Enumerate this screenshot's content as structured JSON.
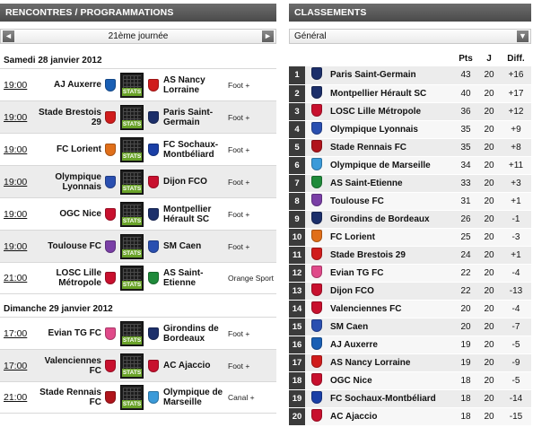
{
  "left_panel": {
    "title": "RENCONTRES / PROGRAMMATIONS",
    "round_selector": {
      "prev_icon": "◄",
      "label": "21ème journée",
      "next_icon": "►"
    },
    "days": [
      {
        "date": "Samedi 28 janvier 2012",
        "matches": [
          {
            "time": "19:00",
            "home": "AJ Auxerre",
            "home_color": "#1a5fb4",
            "away": "AS Nancy Lorraine",
            "away_color": "#d01c1c",
            "tv": "Foot +"
          },
          {
            "time": "19:00",
            "home": "Stade Brestois 29",
            "home_color": "#d01c1c",
            "away": "Paris Saint-Germain",
            "away_color": "#1c2f6a",
            "tv": "Foot +"
          },
          {
            "time": "19:00",
            "home": "FC Lorient",
            "home_color": "#e06f1a",
            "away": "FC Sochaux-Montbéliard",
            "away_color": "#1a3fa6",
            "tv": "Foot +"
          },
          {
            "time": "19:00",
            "home": "Olympique Lyonnais",
            "home_color": "#2a4fb0",
            "away": "Dijon FCO",
            "away_color": "#c8102e",
            "tv": "Foot +"
          },
          {
            "time": "19:00",
            "home": "OGC Nice",
            "home_color": "#c8102e",
            "away": "Montpellier Hérault SC",
            "away_color": "#1c2f6a",
            "tv": "Foot +"
          },
          {
            "time": "19:00",
            "home": "Toulouse FC",
            "home_color": "#7a3fa6",
            "away": "SM Caen",
            "away_color": "#2a4fb0",
            "tv": "Foot +"
          },
          {
            "time": "21:00",
            "home": "LOSC Lille Métropole",
            "home_color": "#c8102e",
            "away": "AS Saint-Etienne",
            "away_color": "#1f8a3a",
            "tv": "Orange Sport"
          }
        ]
      },
      {
        "date": "Dimanche 29 janvier 2012",
        "matches": [
          {
            "time": "17:00",
            "home": "Evian TG FC",
            "home_color": "#e04a8a",
            "away": "Girondins de Bordeaux",
            "away_color": "#1c2f6a",
            "tv": "Foot +"
          },
          {
            "time": "17:00",
            "home": "Valenciennes FC",
            "home_color": "#c8102e",
            "away": "AC Ajaccio",
            "away_color": "#c8102e",
            "tv": "Foot +"
          },
          {
            "time": "21:00",
            "home": "Stade Rennais FC",
            "home_color": "#b0151c",
            "away": "Olympique de Marseille",
            "away_color": "#3a9ad9",
            "tv": "Canal +"
          }
        ]
      }
    ],
    "stats_label": "STATS"
  },
  "right_panel": {
    "title": "CLASSEMENTS",
    "selector_label": "Général",
    "selector_icon": "chevron-down-icon",
    "columns": {
      "pts": "Pts",
      "j": "J",
      "diff": "Diff."
    },
    "rows": [
      {
        "rank": "1",
        "team": "Paris Saint-Germain",
        "pts": "43",
        "j": "20",
        "diff": "+16",
        "color": "#1c2f6a"
      },
      {
        "rank": "2",
        "team": "Montpellier Hérault SC",
        "pts": "40",
        "j": "20",
        "diff": "+17",
        "color": "#1c2f6a"
      },
      {
        "rank": "3",
        "team": "LOSC Lille Métropole",
        "pts": "36",
        "j": "20",
        "diff": "+12",
        "color": "#c8102e"
      },
      {
        "rank": "4",
        "team": "Olympique Lyonnais",
        "pts": "35",
        "j": "20",
        "diff": "+9",
        "color": "#2a4fb0"
      },
      {
        "rank": "5",
        "team": "Stade Rennais FC",
        "pts": "35",
        "j": "20",
        "diff": "+8",
        "color": "#b0151c"
      },
      {
        "rank": "6",
        "team": "Olympique de Marseille",
        "pts": "34",
        "j": "20",
        "diff": "+11",
        "color": "#3a9ad9"
      },
      {
        "rank": "7",
        "team": "AS Saint-Etienne",
        "pts": "33",
        "j": "20",
        "diff": "+3",
        "color": "#1f8a3a"
      },
      {
        "rank": "8",
        "team": "Toulouse FC",
        "pts": "31",
        "j": "20",
        "diff": "+1",
        "color": "#7a3fa6"
      },
      {
        "rank": "9",
        "team": "Girondins de Bordeaux",
        "pts": "26",
        "j": "20",
        "diff": "-1",
        "color": "#1c2f6a"
      },
      {
        "rank": "10",
        "team": "FC Lorient",
        "pts": "25",
        "j": "20",
        "diff": "-3",
        "color": "#e06f1a"
      },
      {
        "rank": "11",
        "team": "Stade Brestois 29",
        "pts": "24",
        "j": "20",
        "diff": "+1",
        "color": "#d01c1c"
      },
      {
        "rank": "12",
        "team": "Evian TG FC",
        "pts": "22",
        "j": "20",
        "diff": "-4",
        "color": "#e04a8a"
      },
      {
        "rank": "13",
        "team": "Dijon FCO",
        "pts": "22",
        "j": "20",
        "diff": "-13",
        "color": "#c8102e"
      },
      {
        "rank": "14",
        "team": "Valenciennes FC",
        "pts": "20",
        "j": "20",
        "diff": "-4",
        "color": "#c8102e"
      },
      {
        "rank": "15",
        "team": "SM Caen",
        "pts": "20",
        "j": "20",
        "diff": "-7",
        "color": "#2a4fb0"
      },
      {
        "rank": "16",
        "team": "AJ Auxerre",
        "pts": "19",
        "j": "20",
        "diff": "-5",
        "color": "#1a5fb4"
      },
      {
        "rank": "17",
        "team": "AS Nancy Lorraine",
        "pts": "19",
        "j": "20",
        "diff": "-9",
        "color": "#d01c1c"
      },
      {
        "rank": "18",
        "team": "OGC Nice",
        "pts": "18",
        "j": "20",
        "diff": "-5",
        "color": "#c8102e"
      },
      {
        "rank": "19",
        "team": "FC Sochaux-Montbéliard",
        "pts": "18",
        "j": "20",
        "diff": "-14",
        "color": "#1a3fa6"
      },
      {
        "rank": "20",
        "team": "AC Ajaccio",
        "pts": "18",
        "j": "20",
        "diff": "-15",
        "color": "#c8102e"
      }
    ]
  }
}
